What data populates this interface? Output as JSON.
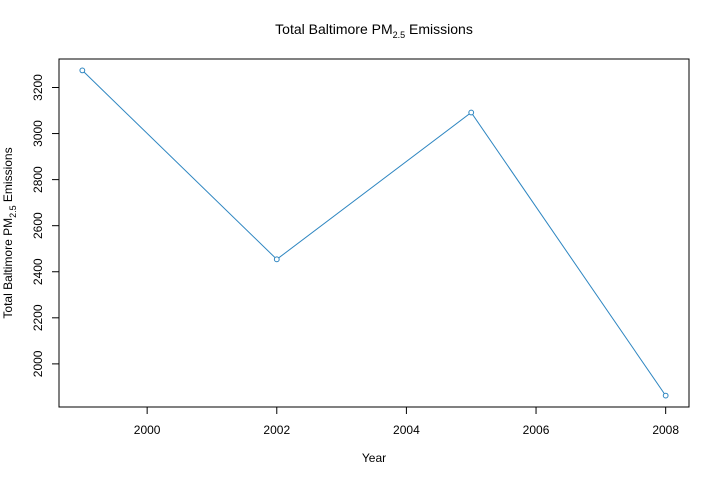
{
  "chart_data": {
    "type": "line",
    "title": {
      "prefix": "Total Baltimore PM",
      "subscript": "2.5",
      "suffix": " Emissions"
    },
    "xlabel": "Year",
    "ylabel": {
      "prefix": "Total Baltimore  PM",
      "subscript": "2.5",
      "suffix": " Emissions"
    },
    "x": [
      1999,
      2002,
      2005,
      2008
    ],
    "series": [
      {
        "values": [
          3274.18,
          2453.92,
          3091.35,
          1862.28
        ],
        "color": "#2e86c1",
        "marker": "open-circle"
      }
    ],
    "xticks": [
      2000,
      2002,
      2004,
      2006,
      2008
    ],
    "yticks": [
      2000,
      2200,
      2400,
      2600,
      2800,
      3000,
      3200
    ],
    "xlim": [
      1998.64,
      2008.36
    ],
    "ylim": [
      1812.8,
      3323.7
    ],
    "grid": false,
    "legend": "none"
  }
}
